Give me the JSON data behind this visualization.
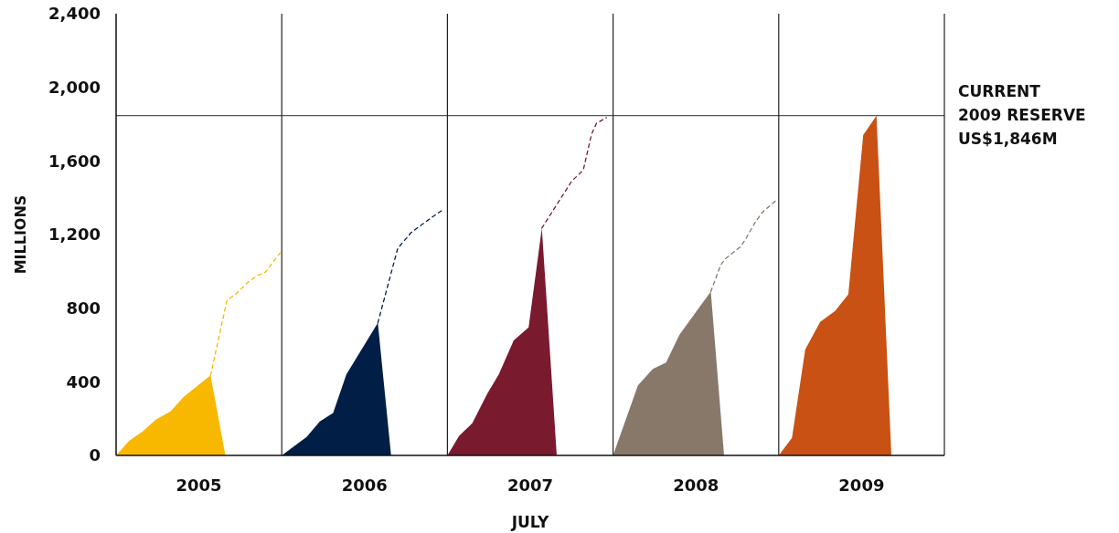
{
  "chart_data": {
    "type": "area",
    "xlabel": "JULY",
    "ylabel": "MILLIONS",
    "xlim": [
      2004.5,
      2009.5
    ],
    "ylim": [
      0,
      2400
    ],
    "xticks": [
      2005,
      2006,
      2007,
      2008,
      2009
    ],
    "yticks": [
      {
        "value": 0,
        "label": "0"
      },
      {
        "value": 400,
        "label": "400"
      },
      {
        "value": 800,
        "label": "800"
      },
      {
        "value": 1200,
        "label": "1,200"
      },
      {
        "value": 1600,
        "label": "1,600"
      },
      {
        "value": 2000,
        "label": "2,000"
      },
      {
        "value": 2400,
        "label": "2,400"
      }
    ],
    "ref_lines": [
      {
        "axis": "y",
        "value": 1846,
        "label": "CURRENT\n2009 RESERVE\nUS$1,846M",
        "color": "#555555"
      },
      {
        "axis": "x",
        "value": 2005.5,
        "color": "#222222"
      },
      {
        "axis": "x",
        "value": 2006.5,
        "color": "#222222"
      },
      {
        "axis": "x",
        "value": 2007.5,
        "color": "#222222"
      },
      {
        "axis": "x",
        "value": 2008.5,
        "color": "#222222"
      },
      {
        "axis": "x",
        "value": 2009.5,
        "color": "#222222"
      }
    ],
    "series": [
      {
        "color": "#f9b800",
        "x": [
          2004.5,
          2004.58,
          2004.66,
          2004.74,
          2004.83,
          2004.91,
          2005.07,
          2005.16
        ],
        "values": [
          0,
          80,
          130,
          195,
          240,
          320,
          435,
          0
        ]
      },
      {
        "type": "line",
        "line_style": "dashed",
        "color": "#f9b800",
        "x": [
          2005.07,
          2005.17,
          2005.22,
          2005.3,
          2005.36,
          2005.4,
          2005.49
        ],
        "values": [
          435,
          845,
          875,
          945,
          980,
          995,
          1100
        ]
      },
      {
        "color": "#001e46",
        "x": [
          2005.5,
          2005.65,
          2005.73,
          2005.81,
          2005.89,
          2006.08,
          2006.16
        ],
        "values": [
          0,
          100,
          185,
          230,
          440,
          720,
          0
        ]
      },
      {
        "type": "line",
        "line_style": "dashed",
        "color": "#001e46",
        "x": [
          2006.08,
          2006.2,
          2006.28,
          2006.37,
          2006.48
        ],
        "values": [
          720,
          1125,
          1210,
          1270,
          1340
        ]
      },
      {
        "color": "#7a1a2e",
        "x": [
          2006.5,
          2006.57,
          2006.65,
          2006.74,
          2006.81,
          2006.9,
          2006.99,
          2007.07,
          2007.16
        ],
        "values": [
          0,
          105,
          175,
          335,
          440,
          625,
          695,
          1235,
          0
        ]
      },
      {
        "type": "line",
        "line_style": "dashed",
        "color": "#7a1a2e",
        "x": [
          2007.07,
          2007.25,
          2007.32,
          2007.37,
          2007.4,
          2007.46
        ],
        "values": [
          1235,
          1490,
          1550,
          1745,
          1805,
          1835
        ]
      },
      {
        "color": "#87786a",
        "x": [
          2007.5,
          2007.65,
          2007.74,
          2007.82,
          2007.9,
          2008.09,
          2008.17
        ],
        "values": [
          0,
          380,
          470,
          505,
          655,
          890,
          0
        ]
      },
      {
        "type": "line",
        "line_style": "dashed",
        "color": "#87786a",
        "x": [
          2008.09,
          2008.15,
          2008.18,
          2008.27,
          2008.3,
          2008.36,
          2008.4,
          2008.49
        ],
        "values": [
          890,
          1035,
          1070,
          1135,
          1175,
          1270,
          1320,
          1390
        ]
      },
      {
        "color": "#c95114",
        "x": [
          2008.5,
          2008.58,
          2008.66,
          2008.75,
          2008.84,
          2008.92,
          2009.01,
          2009.09,
          2009.18
        ],
        "values": [
          0,
          95,
          575,
          725,
          785,
          875,
          1740,
          1846,
          0
        ]
      }
    ]
  }
}
